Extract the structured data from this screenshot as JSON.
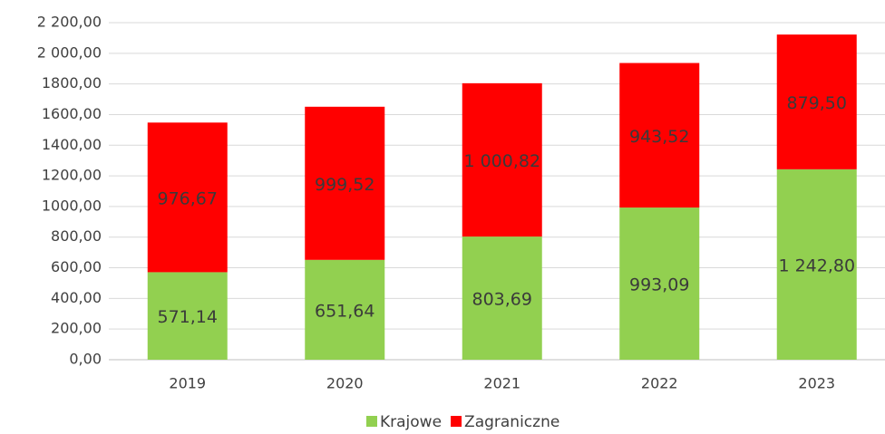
{
  "chart_data": {
    "type": "stacked_bar",
    "categories": [
      "2019",
      "2020",
      "2021",
      "2022",
      "2023"
    ],
    "series": [
      {
        "name": "Krajowe",
        "color": "#92d050",
        "values": [
          571.14,
          651.64,
          803.69,
          993.09,
          1242.8
        ],
        "value_labels": [
          "571,14",
          "651,64",
          "803,69",
          "993,09",
          "1 242,80"
        ]
      },
      {
        "name": "Zagraniczne",
        "color": "#ff0000",
        "values": [
          976.67,
          999.52,
          1000.82,
          943.52,
          879.5
        ],
        "value_labels": [
          "976,67",
          "999,52",
          "1 000,82",
          "943,52",
          "879,50"
        ]
      }
    ],
    "ylim": [
      0,
      2200
    ],
    "yticks": [
      {
        "value": 0,
        "label": "0,00"
      },
      {
        "value": 200,
        "label": "200,00"
      },
      {
        "value": 400,
        "label": "400,00"
      },
      {
        "value": 600,
        "label": "600,00"
      },
      {
        "value": 800,
        "label": "800,00"
      },
      {
        "value": 1000,
        "label": "1000,00"
      },
      {
        "value": 1200,
        "label": "1200,00"
      },
      {
        "value": 1400,
        "label": "1400,00"
      },
      {
        "value": 1600,
        "label": "1600,00"
      },
      {
        "value": 1800,
        "label": "1800,00"
      },
      {
        "value": 2000,
        "label": "2 000,00"
      },
      {
        "value": 2200,
        "label": "2 200,00"
      }
    ],
    "grid": true,
    "legend": "bottom"
  }
}
